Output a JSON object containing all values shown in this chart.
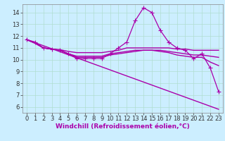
{
  "background_color": "#cceeff",
  "grid_color": "#b0ddd0",
  "line_color": "#aa00aa",
  "xlim": [
    -0.5,
    23.5
  ],
  "ylim": [
    5.5,
    14.7
  ],
  "xlabel": "Windchill (Refroidissement éolien,°C)",
  "xlabel_fontsize": 6.5,
  "xticks": [
    0,
    1,
    2,
    3,
    4,
    5,
    6,
    7,
    8,
    9,
    10,
    11,
    12,
    13,
    14,
    15,
    16,
    17,
    18,
    19,
    20,
    21,
    22,
    23
  ],
  "yticks": [
    6,
    7,
    8,
    9,
    10,
    11,
    12,
    13,
    14
  ],
  "tick_fontsize": 6.0,
  "lines": [
    {
      "x": [
        0,
        1,
        2,
        3,
        4,
        5,
        6,
        7,
        8,
        9,
        10,
        11,
        12,
        13,
        14,
        15,
        16,
        17,
        18,
        19,
        20,
        21,
        22,
        23
      ],
      "y": [
        11.7,
        11.5,
        11.0,
        10.9,
        10.8,
        10.5,
        10.1,
        10.1,
        10.1,
        10.1,
        10.5,
        11.0,
        11.5,
        13.3,
        14.4,
        14.0,
        12.5,
        11.5,
        11.0,
        10.8,
        10.1,
        10.5,
        9.3,
        7.3
      ],
      "marker": "+",
      "linewidth": 0.9,
      "markersize": 4
    },
    {
      "x": [
        0,
        1,
        2,
        3,
        4,
        5,
        6,
        7,
        8,
        9,
        10,
        11,
        12,
        13,
        14,
        15,
        16,
        17,
        18,
        19,
        20,
        21,
        22,
        23
      ],
      "y": [
        11.7,
        11.4,
        11.0,
        10.9,
        10.85,
        10.7,
        10.6,
        10.6,
        10.6,
        10.6,
        10.7,
        10.8,
        11.0,
        11.0,
        11.0,
        11.0,
        11.0,
        11.0,
        10.9,
        10.9,
        10.8,
        10.8,
        10.8,
        10.8
      ],
      "marker": null,
      "linewidth": 1.0,
      "markersize": 0
    },
    {
      "x": [
        0,
        1,
        2,
        3,
        4,
        5,
        6,
        7,
        8,
        9,
        10,
        11,
        12,
        13,
        14,
        15,
        16,
        17,
        18,
        19,
        20,
        21,
        22,
        23
      ],
      "y": [
        11.7,
        11.4,
        11.0,
        10.9,
        10.8,
        10.5,
        10.3,
        10.3,
        10.3,
        10.3,
        10.5,
        10.6,
        10.7,
        10.8,
        10.8,
        10.8,
        10.8,
        10.7,
        10.6,
        10.5,
        10.4,
        10.4,
        10.3,
        10.2
      ],
      "marker": null,
      "linewidth": 1.0,
      "markersize": 0
    },
    {
      "x": [
        0,
        1,
        2,
        3,
        4,
        5,
        6,
        7,
        8,
        9,
        10,
        11,
        12,
        13,
        14,
        15,
        16,
        17,
        18,
        19,
        20,
        21,
        22,
        23
      ],
      "y": [
        11.7,
        11.4,
        11.0,
        10.9,
        10.8,
        10.5,
        10.2,
        10.2,
        10.2,
        10.2,
        10.4,
        10.5,
        10.6,
        10.7,
        10.8,
        10.8,
        10.7,
        10.6,
        10.4,
        10.3,
        10.2,
        10.2,
        9.8,
        9.5
      ],
      "marker": null,
      "linewidth": 1.0,
      "markersize": 0
    },
    {
      "x": [
        0,
        23
      ],
      "y": [
        11.7,
        5.8
      ],
      "marker": null,
      "linewidth": 1.0,
      "markersize": 0
    }
  ]
}
